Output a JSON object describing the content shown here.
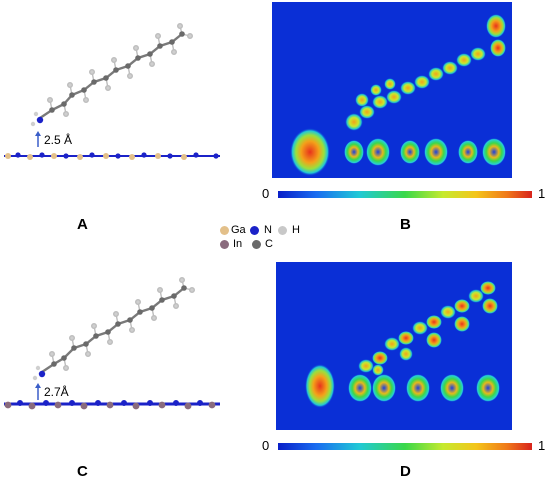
{
  "panels": {
    "a": {
      "letter": "A",
      "distance": "2.5 Å"
    },
    "b": {
      "letter": "B",
      "colorbar_min": "0",
      "colorbar_max": "1"
    },
    "c": {
      "letter": "C",
      "distance": "2.7Å"
    },
    "d": {
      "letter": "D",
      "colorbar_min": "0",
      "colorbar_max": "1"
    }
  },
  "legend": {
    "ga": "Ga",
    "n": "N",
    "h": "H",
    "in": "In",
    "c": "C"
  },
  "colors": {
    "ga_atom": "#e3c08a",
    "in_atom": "#8a6b7d",
    "n_atom": "#1b22c8",
    "c_atom": "#6a6a6a",
    "h_atom": "#c8c8c8",
    "map_background": "#0a2fd6"
  }
}
